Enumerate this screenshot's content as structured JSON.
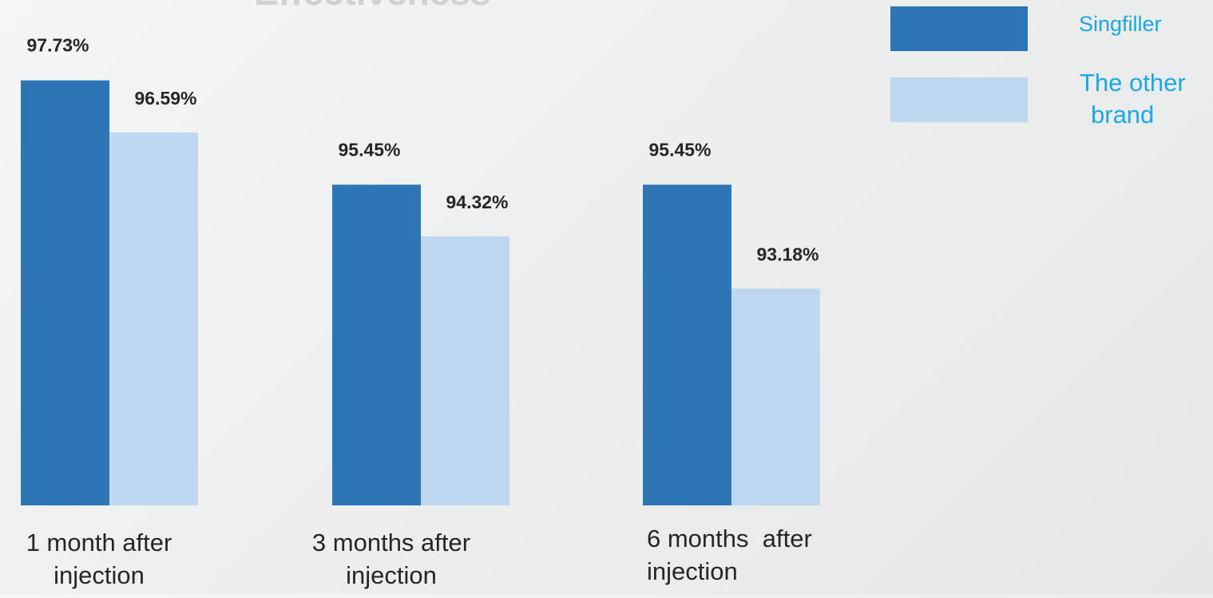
{
  "chart_data": {
    "type": "bar",
    "title": "Effectiveness",
    "categories": [
      [
        "1 month after",
        "injection"
      ],
      [
        "3 months after",
        "injection"
      ],
      [
        "6 months  after",
        "injection"
      ]
    ],
    "series": [
      {
        "name": "Singfiller",
        "values": [
          97.73,
          95.45,
          95.45
        ],
        "labels": [
          "97.73%",
          "95.45%",
          "95.45%"
        ]
      },
      {
        "name": "The other brand",
        "legend_lines": [
          "The other",
          "brand"
        ],
        "values": [
          96.59,
          94.32,
          93.18
        ],
        "labels": [
          "96.59%",
          "94.32%",
          "93.18%"
        ]
      }
    ],
    "ylim": [
      88.44,
      98.92
    ],
    "grid": false,
    "legend_position": "top-right",
    "colors": {
      "series_1": "#2e75b6",
      "series_2": "#bdd7ee",
      "legend_text": "#1ea7e0",
      "value_label": "#262626",
      "category_label": "#262626",
      "title": "#d0d1d3"
    }
  }
}
